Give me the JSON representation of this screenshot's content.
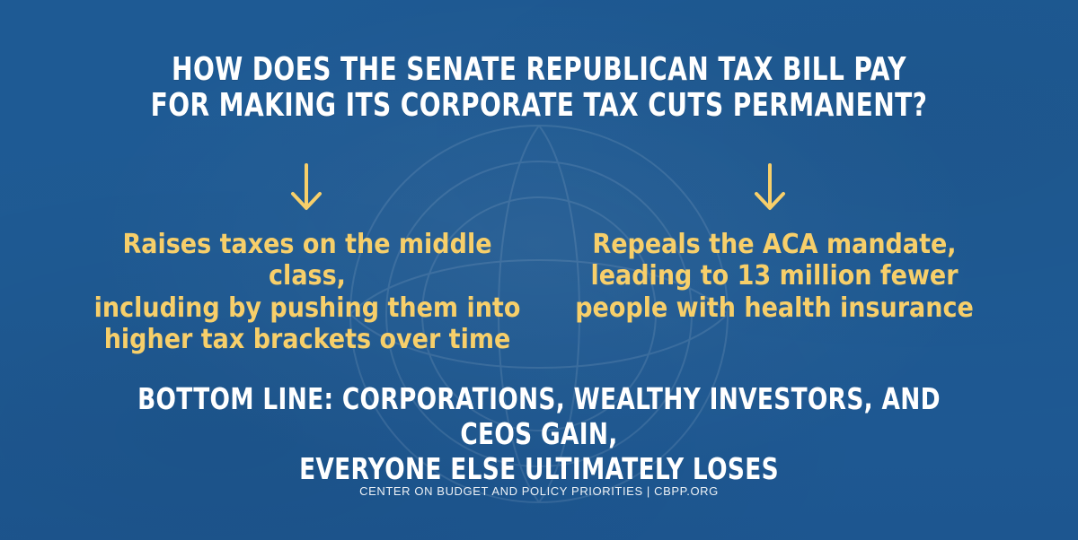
{
  "colors": {
    "background": "#1f5b95",
    "headline": "#ffffff",
    "points": "#f7cf6a",
    "arrows": "#f7cf6a",
    "footer": "#ffffff"
  },
  "headline": {
    "line1": "HOW DOES THE SENATE REPUBLICAN TAX BILL PAY",
    "line2": "FOR MAKING ITS CORPORATE TAX CUTS PERMANENT?"
  },
  "icons": {
    "left_arrow": "arrow-down-icon",
    "right_arrow": "arrow-down-icon"
  },
  "points": {
    "left": {
      "line1": "Raises taxes on the middle class,",
      "line2": "including by pushing them into",
      "line3": "higher tax brackets over time"
    },
    "right": {
      "line1": "Repeals the ACA mandate,",
      "line2": "leading to 13 million fewer",
      "line3": "people with health insurance"
    }
  },
  "bottom_line": {
    "line1": "BOTTOM LINE: CORPORATIONS, WEALTHY INVESTORS, AND CEOs GAIN,",
    "line2": "EVERYONE ELSE ULTIMATELY LOSES"
  },
  "footer": {
    "text": "CENTER ON BUDGET AND POLICY PRIORITIES | CBPP.ORG"
  }
}
